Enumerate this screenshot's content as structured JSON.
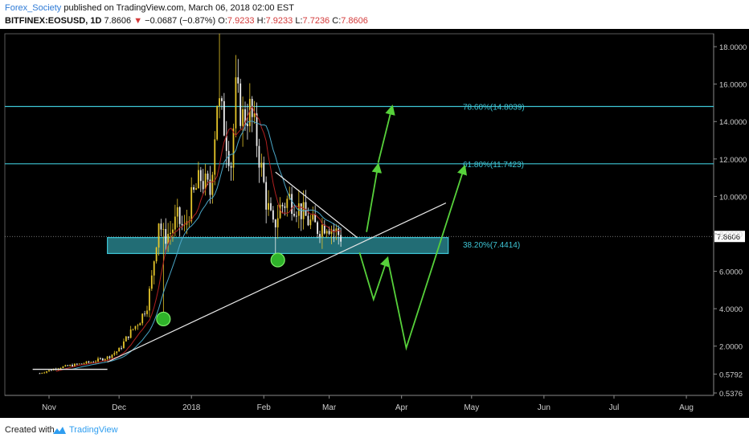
{
  "header": {
    "author": "Forex_Society",
    "published_text": "published on TradingView.com, March 06, 2018 02:00 EST",
    "symbol": "BITFINEX:EOSUSD, 1D",
    "last": "7.8606",
    "change": "−0.0687 (−0.87%)",
    "o_label": "O:",
    "o_val": "7.9233",
    "h_label": "H:",
    "h_val": "7.9233",
    "l_label": "L:",
    "l_val": "7.7236",
    "c_label": "C:",
    "c_val": "7.8606"
  },
  "footer": {
    "created_with": "Created with",
    "brand": "TradingView"
  },
  "colors": {
    "up": "#e5c52a",
    "down": "#f0f0f0",
    "fib": "#3ec6d6",
    "arrow": "#57d13b",
    "trend": "#e8e8e8",
    "ma_red": "#b02020",
    "ma_blue": "#4aa6c7",
    "price_tag": "#ffffff"
  },
  "chart_data": {
    "type": "candlestick",
    "symbol": "BITFINEX:EOSUSD",
    "interval": "1D",
    "x_ticks": [
      "Nov",
      "Dec",
      "2018",
      "Feb",
      "Mar",
      "Apr",
      "May",
      "Jun",
      "Jul",
      "Aug"
    ],
    "x_tick_dates": [
      "2017-11-01",
      "2017-12-01",
      "2018-01-01",
      "2018-02-01",
      "2018-03-01",
      "2018-04-01",
      "2018-05-01",
      "2018-06-01",
      "2018-07-01",
      "2018-08-01"
    ],
    "y_ticks": [
      "18.0000",
      "16.0000",
      "14.0000",
      "12.0000",
      "10.0000",
      "8.0000",
      "6.0000",
      "4.0000",
      "2.0000",
      "0.5792",
      "0.5376"
    ],
    "y_tick_values": [
      18,
      16,
      14,
      12,
      10,
      8,
      6,
      4,
      2,
      0.5792,
      0.5376
    ],
    "last_price_label": "7.8606",
    "last_price": 7.8606,
    "close_series": {
      "dates": [
        "2017-10-28",
        "2017-11-05",
        "2017-11-12",
        "2017-11-19",
        "2017-11-26",
        "2017-12-01",
        "2017-12-05",
        "2017-12-10",
        "2017-12-13",
        "2017-12-15",
        "2017-12-18",
        "2017-12-20",
        "2017-12-23",
        "2017-12-26",
        "2017-12-29",
        "2018-01-01",
        "2018-01-05",
        "2018-01-09",
        "2018-01-12",
        "2018-01-15",
        "2018-01-18",
        "2018-01-20",
        "2018-01-23",
        "2018-01-26",
        "2018-01-29",
        "2018-02-02",
        "2018-02-05",
        "2018-02-08",
        "2018-02-12",
        "2018-02-16",
        "2018-02-20",
        "2018-02-24",
        "2018-02-28",
        "2018-03-03",
        "2018-03-06"
      ],
      "close": [
        0.55,
        0.85,
        1.0,
        1.15,
        1.4,
        1.8,
        2.6,
        3.4,
        4.2,
        5.6,
        8.8,
        7.8,
        8.1,
        8.8,
        8.2,
        9.8,
        11.0,
        10.2,
        15.2,
        13.8,
        11.8,
        15.5,
        14.2,
        14.6,
        13.0,
        9.8,
        8.3,
        9.4,
        9.9,
        9.4,
        8.7,
        8.3,
        8.6,
        8.2,
        7.8606
      ]
    },
    "fib_levels": [
      {
        "label": "78.60%(14.8039)",
        "value": 14.8039
      },
      {
        "label": "61.80%(11.7423)",
        "value": 11.7423
      },
      {
        "label": "38.20%(7.4414)",
        "value": 7.4414
      }
    ],
    "support_zone": {
      "top": 7.8,
      "bottom": 6.95
    },
    "support_line": {
      "from_date": "2017-10-25",
      "from_value": 0.76,
      "to_date": "2017-11-26",
      "to_value": 0.76
    },
    "rising_trendline": {
      "from_date": "2017-11-26",
      "from_value": 1.15,
      "to_date": "2018-04-20",
      "to_value": 9.65
    },
    "falling_trendline": {
      "from_date": "2018-02-06",
      "from_value": 11.3,
      "to_date": "2018-03-13",
      "to_value": 7.8
    },
    "marked_lows": [
      {
        "date": "2017-12-20",
        "value": 3.45
      },
      {
        "date": "2018-02-07",
        "value": 6.6
      }
    ],
    "projection_paths": [
      [
        {
          "date": "2018-03-17",
          "value": 8.1
        },
        {
          "date": "2018-03-22",
          "value": 11.7
        }
      ],
      [
        {
          "date": "2018-03-22",
          "value": 11.8
        },
        {
          "date": "2018-03-28",
          "value": 14.8
        }
      ],
      [
        {
          "date": "2018-03-14",
          "value": 7.0
        },
        {
          "date": "2018-03-20",
          "value": 4.5
        },
        {
          "date": "2018-03-26",
          "value": 6.7
        }
      ],
      [
        {
          "date": "2018-03-26",
          "value": 6.7
        },
        {
          "date": "2018-04-03",
          "value": 1.9
        },
        {
          "date": "2018-04-28",
          "value": 11.6
        }
      ]
    ]
  }
}
